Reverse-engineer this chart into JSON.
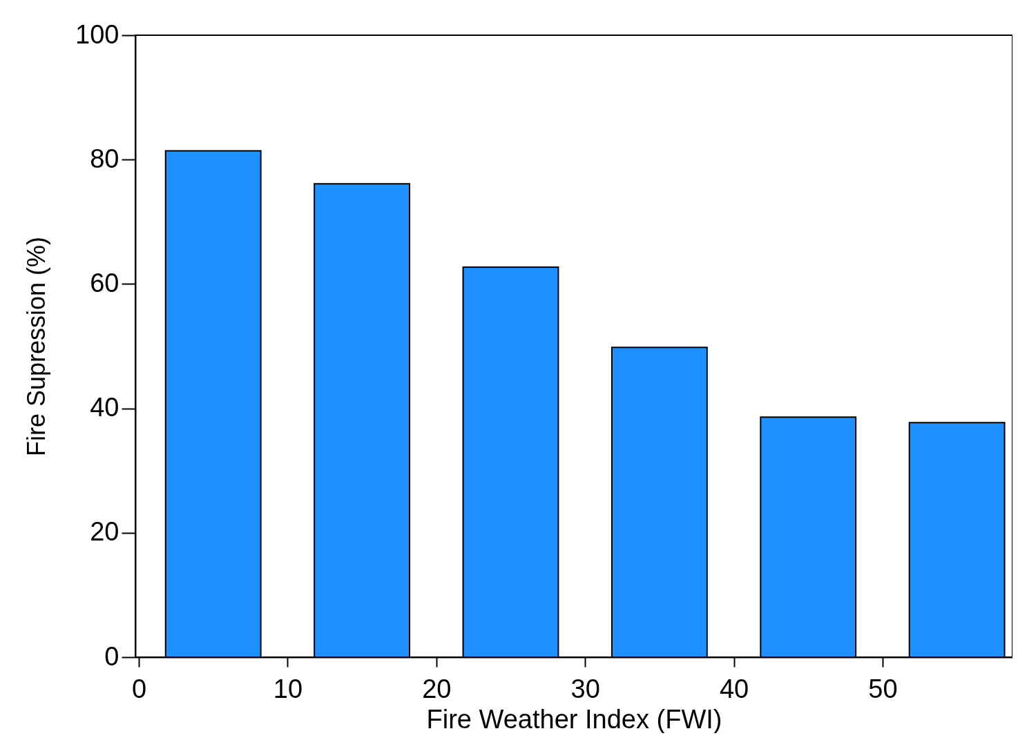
{
  "chart_data": {
    "type": "bar",
    "xlabel": "Fire Weather Index (FWI)",
    "ylabel": "Fire Supression (%)",
    "x": [
      5,
      15,
      25,
      35,
      45,
      55
    ],
    "values": [
      81.4,
      76.1,
      62.7,
      49.8,
      38.6,
      37.7
    ],
    "color": "#1e90ff",
    "xlim": [
      0,
      58.5
    ],
    "xticks": [
      0,
      10,
      20,
      30,
      40,
      50
    ],
    "ylim": [
      0,
      100
    ],
    "yticks": [
      0,
      20,
      40,
      60,
      80,
      100
    ]
  }
}
